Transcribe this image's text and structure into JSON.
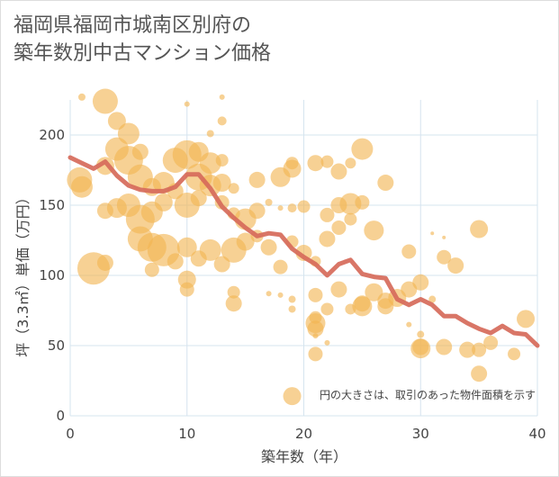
{
  "chart_data": {
    "type": "scatter",
    "title": [
      "福岡県福岡市城南区別府の",
      "築年数別中古マンション価格"
    ],
    "xlabel": "築年数（年）",
    "ylabel": "坪（3.3㎡）単価（万円）",
    "annotation": "円の大きさは、取引のあった物件面積を示す",
    "xlim": [
      0,
      40
    ],
    "ylim": [
      0,
      225
    ],
    "xticks": [
      "0",
      "10",
      "20",
      "30",
      "40"
    ],
    "yticks": [
      "0",
      "50",
      "100",
      "150",
      "200"
    ],
    "colors": {
      "bubble": "#f2b552",
      "trend": "#d66a5a",
      "grid": "#d6e4ef"
    },
    "trend": {
      "x": [
        0,
        1,
        2,
        3,
        4,
        5,
        6,
        7,
        8,
        9,
        10,
        11,
        12,
        13,
        14,
        15,
        16,
        17,
        18,
        19,
        20,
        21,
        22,
        23,
        24,
        25,
        26,
        27,
        28,
        29,
        30,
        31,
        32,
        33,
        34,
        35,
        36,
        37,
        38,
        39,
        40
      ],
      "y": [
        184,
        180,
        176,
        181,
        171,
        164,
        161,
        160,
        160,
        163,
        172,
        172,
        162,
        149,
        141,
        134,
        128,
        130,
        129,
        119,
        113,
        108,
        100,
        108,
        111,
        101,
        99,
        98,
        83,
        79,
        83,
        79,
        71,
        71,
        66,
        62,
        59,
        64,
        59,
        58,
        50
      ]
    },
    "points": [
      {
        "x": 1,
        "y": 227,
        "r": 4
      },
      {
        "x": 3,
        "y": 224,
        "r": 14
      },
      {
        "x": 10,
        "y": 222,
        "r": 3
      },
      {
        "x": 13,
        "y": 227,
        "r": 3
      },
      {
        "x": 4,
        "y": 210,
        "r": 10
      },
      {
        "x": 5,
        "y": 201,
        "r": 12
      },
      {
        "x": 12,
        "y": 201,
        "r": 4
      },
      {
        "x": 13,
        "y": 210,
        "r": 5
      },
      {
        "x": 4,
        "y": 190,
        "r": 13
      },
      {
        "x": 5,
        "y": 182,
        "r": 16
      },
      {
        "x": 6,
        "y": 188,
        "r": 9
      },
      {
        "x": 9,
        "y": 182,
        "r": 14
      },
      {
        "x": 10,
        "y": 186,
        "r": 16
      },
      {
        "x": 11,
        "y": 188,
        "r": 11
      },
      {
        "x": 12,
        "y": 180,
        "r": 12
      },
      {
        "x": 13,
        "y": 182,
        "r": 7
      },
      {
        "x": 0.8,
        "y": 168,
        "r": 14
      },
      {
        "x": 1,
        "y": 163,
        "r": 12
      },
      {
        "x": 3,
        "y": 178,
        "r": 10
      },
      {
        "x": 6,
        "y": 170,
        "r": 14
      },
      {
        "x": 7,
        "y": 163,
        "r": 10
      },
      {
        "x": 8,
        "y": 166,
        "r": 12
      },
      {
        "x": 9,
        "y": 160,
        "r": 9
      },
      {
        "x": 11,
        "y": 170,
        "r": 15
      },
      {
        "x": 12,
        "y": 164,
        "r": 12
      },
      {
        "x": 13,
        "y": 166,
        "r": 10
      },
      {
        "x": 14,
        "y": 162,
        "r": 6
      },
      {
        "x": 16,
        "y": 168,
        "r": 9
      },
      {
        "x": 18,
        "y": 170,
        "r": 11
      },
      {
        "x": 19,
        "y": 176,
        "r": 10
      },
      {
        "x": 19,
        "y": 180,
        "r": 7
      },
      {
        "x": 21,
        "y": 180,
        "r": 9
      },
      {
        "x": 22,
        "y": 181,
        "r": 7
      },
      {
        "x": 23,
        "y": 174,
        "r": 9
      },
      {
        "x": 24,
        "y": 180,
        "r": 6
      },
      {
        "x": 25,
        "y": 190,
        "r": 12
      },
      {
        "x": 27,
        "y": 166,
        "r": 9
      },
      {
        "x": 3,
        "y": 146,
        "r": 9
      },
      {
        "x": 4,
        "y": 148,
        "r": 11
      },
      {
        "x": 5,
        "y": 150,
        "r": 13
      },
      {
        "x": 6,
        "y": 140,
        "r": 16
      },
      {
        "x": 7,
        "y": 145,
        "r": 12
      },
      {
        "x": 8,
        "y": 152,
        "r": 10
      },
      {
        "x": 10,
        "y": 150,
        "r": 14
      },
      {
        "x": 11,
        "y": 155,
        "r": 9
      },
      {
        "x": 13,
        "y": 152,
        "r": 8
      },
      {
        "x": 14,
        "y": 144,
        "r": 7
      },
      {
        "x": 15,
        "y": 140,
        "r": 12
      },
      {
        "x": 16,
        "y": 146,
        "r": 9
      },
      {
        "x": 17,
        "y": 152,
        "r": 4
      },
      {
        "x": 18,
        "y": 148,
        "r": 3
      },
      {
        "x": 19,
        "y": 148,
        "r": 5
      },
      {
        "x": 20,
        "y": 149,
        "r": 7
      },
      {
        "x": 22,
        "y": 143,
        "r": 8
      },
      {
        "x": 23,
        "y": 150,
        "r": 9
      },
      {
        "x": 24,
        "y": 151,
        "r": 12
      },
      {
        "x": 25,
        "y": 152,
        "r": 8
      },
      {
        "x": 6,
        "y": 126,
        "r": 14
      },
      {
        "x": 7,
        "y": 120,
        "r": 16
      },
      {
        "x": 8,
        "y": 118,
        "r": 18
      },
      {
        "x": 9,
        "y": 110,
        "r": 9
      },
      {
        "x": 10,
        "y": 120,
        "r": 11
      },
      {
        "x": 11,
        "y": 112,
        "r": 9
      },
      {
        "x": 12,
        "y": 118,
        "r": 12
      },
      {
        "x": 13,
        "y": 108,
        "r": 9
      },
      {
        "x": 14,
        "y": 118,
        "r": 14
      },
      {
        "x": 15,
        "y": 124,
        "r": 10
      },
      {
        "x": 16,
        "y": 128,
        "r": 7
      },
      {
        "x": 17,
        "y": 120,
        "r": 9
      },
      {
        "x": 18,
        "y": 106,
        "r": 8
      },
      {
        "x": 19,
        "y": 124,
        "r": 7
      },
      {
        "x": 20,
        "y": 116,
        "r": 9
      },
      {
        "x": 21,
        "y": 110,
        "r": 6
      },
      {
        "x": 22,
        "y": 126,
        "r": 9
      },
      {
        "x": 23,
        "y": 134,
        "r": 8
      },
      {
        "x": 24,
        "y": 140,
        "r": 7
      },
      {
        "x": 26,
        "y": 132,
        "r": 11
      },
      {
        "x": 29,
        "y": 117,
        "r": 8
      },
      {
        "x": 32,
        "y": 113,
        "r": 8
      },
      {
        "x": 33,
        "y": 107,
        "r": 9
      },
      {
        "x": 35,
        "y": 133,
        "r": 10
      },
      {
        "x": 32,
        "y": 127,
        "r": 2
      },
      {
        "x": 31,
        "y": 130,
        "r": 2
      },
      {
        "x": 2,
        "y": 105,
        "r": 18
      },
      {
        "x": 3,
        "y": 109,
        "r": 9
      },
      {
        "x": 7,
        "y": 104,
        "r": 8
      },
      {
        "x": 10,
        "y": 97,
        "r": 10
      },
      {
        "x": 10,
        "y": 90,
        "r": 8
      },
      {
        "x": 14,
        "y": 88,
        "r": 7
      },
      {
        "x": 14,
        "y": 80,
        "r": 9
      },
      {
        "x": 17,
        "y": 87,
        "r": 3
      },
      {
        "x": 18,
        "y": 86,
        "r": 3
      },
      {
        "x": 19,
        "y": 83,
        "r": 4
      },
      {
        "x": 19,
        "y": 76,
        "r": 4
      },
      {
        "x": 21,
        "y": 86,
        "r": 8
      },
      {
        "x": 21,
        "y": 70,
        "r": 7
      },
      {
        "x": 22,
        "y": 76,
        "r": 7
      },
      {
        "x": 23,
        "y": 90,
        "r": 9
      },
      {
        "x": 24,
        "y": 76,
        "r": 6
      },
      {
        "x": 25,
        "y": 80,
        "r": 9
      },
      {
        "x": 25,
        "y": 78,
        "r": 11
      },
      {
        "x": 26,
        "y": 88,
        "r": 10
      },
      {
        "x": 27,
        "y": 82,
        "r": 9
      },
      {
        "x": 27,
        "y": 78,
        "r": 9
      },
      {
        "x": 28,
        "y": 84,
        "r": 10
      },
      {
        "x": 29,
        "y": 90,
        "r": 9
      },
      {
        "x": 30,
        "y": 95,
        "r": 9
      },
      {
        "x": 30,
        "y": 58,
        "r": 4
      },
      {
        "x": 31,
        "y": 83,
        "r": 4
      },
      {
        "x": 29,
        "y": 65,
        "r": 3
      },
      {
        "x": 21,
        "y": 66,
        "r": 11
      },
      {
        "x": 21,
        "y": 62,
        "r": 9
      },
      {
        "x": 21,
        "y": 44,
        "r": 8
      },
      {
        "x": 21,
        "y": 57,
        "r": 3
      },
      {
        "x": 22,
        "y": 52,
        "r": 3
      },
      {
        "x": 30,
        "y": 49,
        "r": 9
      },
      {
        "x": 30,
        "y": 48,
        "r": 11
      },
      {
        "x": 32,
        "y": 49,
        "r": 9
      },
      {
        "x": 34,
        "y": 47,
        "r": 9
      },
      {
        "x": 35,
        "y": 47,
        "r": 8
      },
      {
        "x": 36,
        "y": 52,
        "r": 8
      },
      {
        "x": 35,
        "y": 30,
        "r": 9
      },
      {
        "x": 38,
        "y": 44,
        "r": 7
      },
      {
        "x": 39,
        "y": 69,
        "r": 10
      },
      {
        "x": 19,
        "y": 14,
        "r": 10
      }
    ]
  }
}
